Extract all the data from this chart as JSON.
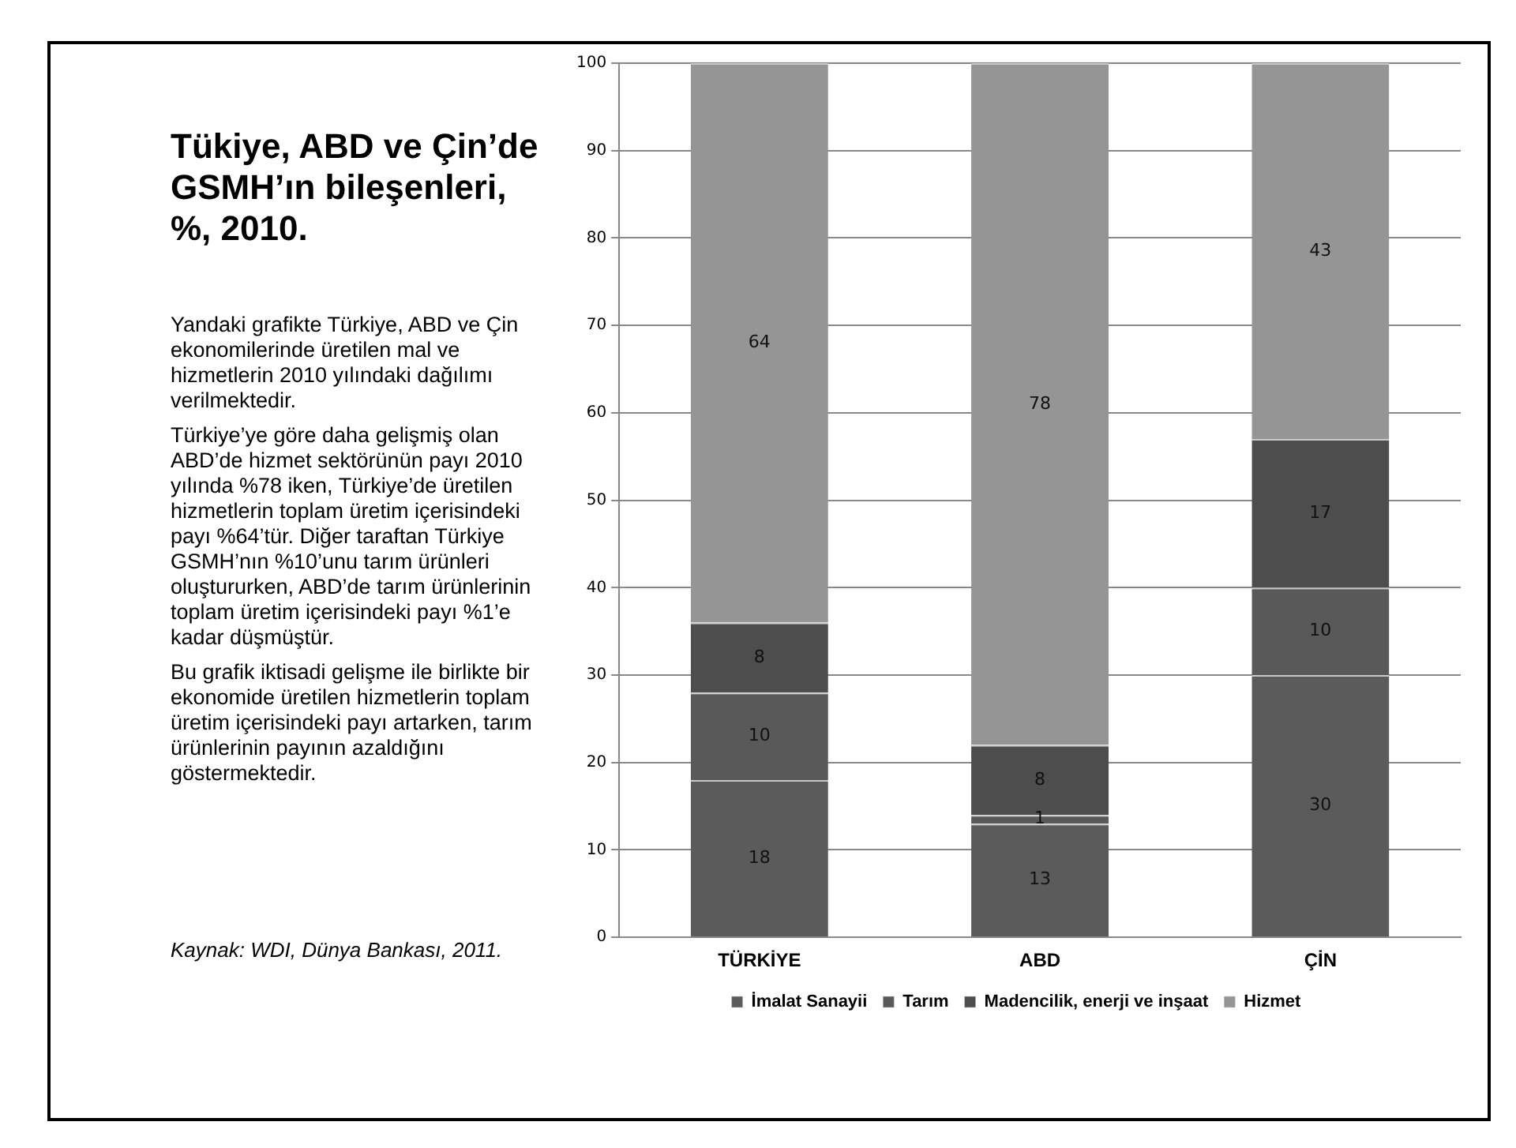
{
  "chart_data": {
    "type": "bar",
    "title": "Tükiye, ABD ve Çin’de GSMH’ın bileşenleri, %, 2010.",
    "subtitle": "Yandaki grafikte Türkiye, ABD ve Çin ekonomilerinde üretilen mal ve hizmetlerin 2010 yılındaki dağılımı verilmektedir.",
    "annotations": [
      "Türkiye’ye göre daha gelişmiş olan ABD’de hizmet sektörünün payı 2010 yılında %78 iken, Türkiye’de üretilen hizmetlerin toplam üretim içerisindeki payı %64’tür. Diğer taraftan Türkiye GSMH’nın %10’unu tarım ürünleri oluştururken, ABD’de tarım ürünlerinin toplam üretim içerisindeki payı %1’e kadar düşmüştür.",
      "Bu grafik iktisadi gelişme ile birlikte bir ekonomide üretilen hizmetlerin toplam üretim içerisindeki payı artarken, tarım ürünlerinin payının azaldığını göstermektedir.",
      "Kaynak: WDI, Dünya Bankası, 2011."
    ],
    "categories": [
      "TÜRKİYE",
      "ABD",
      "ÇİN"
    ],
    "series": [
      {
        "name": "İmalat Sanayii",
        "color": "#5b5b5b",
        "values": [
          18,
          13,
          30
        ]
      },
      {
        "name": "Tarım",
        "color": "#595959",
        "values": [
          10,
          1,
          10
        ]
      },
      {
        "name": "Madencilik, enerji ve inşaat",
        "color": "#4d4d4d",
        "values": [
          8,
          8,
          17
        ]
      },
      {
        "name": "Hizmet",
        "color": "#959595",
        "values": [
          64,
          78,
          43
        ]
      }
    ],
    "stacked": true,
    "ylim": [
      0,
      100
    ],
    "yticks": [
      0,
      10,
      20,
      30,
      40,
      50,
      60,
      70,
      80,
      90,
      100
    ],
    "grid": "y",
    "legend": "bottom",
    "data_labels": true
  }
}
